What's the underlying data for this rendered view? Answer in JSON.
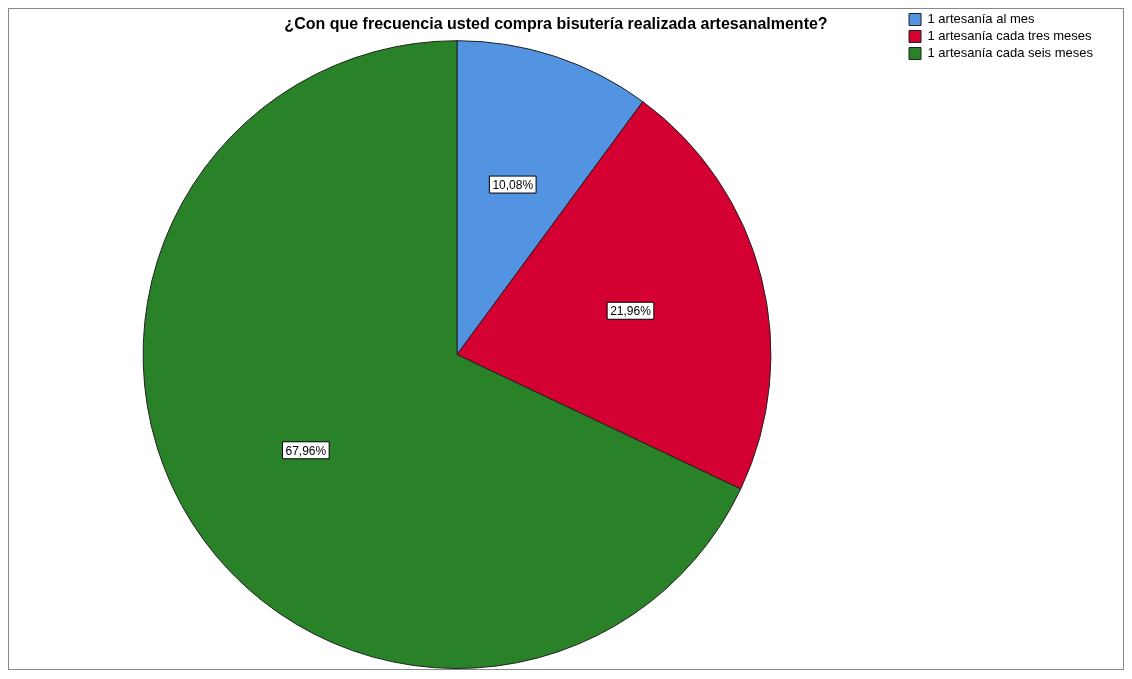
{
  "chart_data": {
    "type": "pie",
    "title": "¿Con que frecuencia usted compra bisutería realizada artesanalmente?",
    "categories": [
      "1 artesanía al mes",
      "1 artesanía cada tres meses",
      "1 artesanía cada seis meses"
    ],
    "values": [
      10.08,
      21.96,
      67.96
    ],
    "colors": [
      "#5294e2",
      "#d50032",
      "#2a8228"
    ],
    "value_labels": [
      "10,08%",
      "21,96%",
      "67,96%"
    ],
    "legend": "top right"
  }
}
